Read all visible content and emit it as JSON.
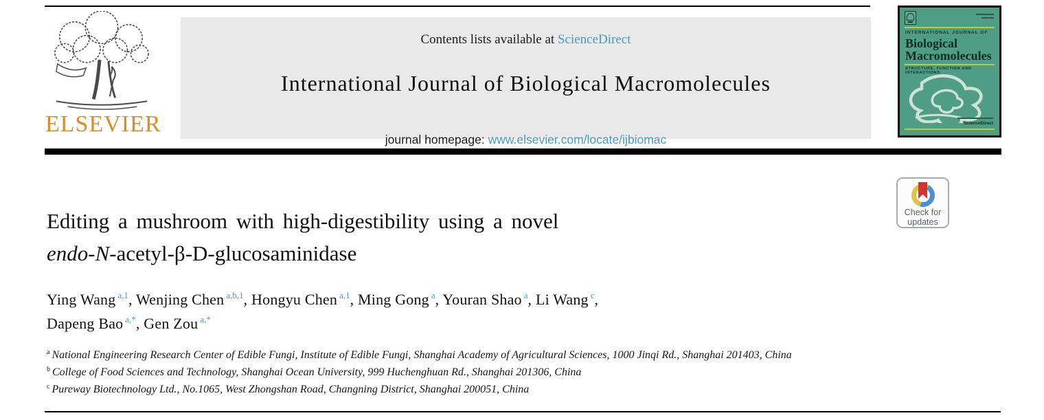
{
  "masthead": {
    "contents_prefix": "Contents lists available at",
    "contents_link": "ScienceDirect",
    "journal_title": "International Journal of Biological Macromolecules",
    "homepage_prefix": "journal homepage:",
    "homepage_link": "www.elsevier.com/locate/ijbiomac"
  },
  "publisher": {
    "wordmark": "ELSEVIER"
  },
  "cover": {
    "kicker": "INTERNATIONAL JOURNAL OF",
    "title_line1": "Biological",
    "title_line2": "Macromolecules",
    "subtitle": "STRUCTURE, FUNCTION AND INTERACTIONS",
    "badge": "ScienceDirect"
  },
  "article": {
    "title_line1": "Editing a mushroom with high-digestibility using a novel",
    "title_line2_italic": "endo-N",
    "title_line2_rest": "-acetyl-β-D-glucosaminidase"
  },
  "authors": {
    "lines": [
      [
        {
          "name": "Ying Wang",
          "sup": "a,1",
          "sep": ", "
        },
        {
          "name": "Wenjing Chen",
          "sup": "a,b,1",
          "sep": ", "
        },
        {
          "name": "Hongyu Chen",
          "sup": "a,1",
          "sep": ", "
        },
        {
          "name": "Ming Gong",
          "sup": "a",
          "sep": ", "
        },
        {
          "name": "Youran Shao",
          "sup": "a",
          "sep": ", "
        },
        {
          "name": "Li Wang",
          "sup": "c",
          "sep": ","
        }
      ],
      [
        {
          "name": "Dapeng Bao",
          "sup": "a,*",
          "sep": ", "
        },
        {
          "name": "Gen Zou",
          "sup": "a,*",
          "sep": ""
        }
      ]
    ]
  },
  "affiliations": [
    {
      "sup": "a",
      "text": "National Engineering Research Center of Edible Fungi, Institute of Edible Fungi, Shanghai Academy of Agricultural Sciences, 1000 Jinqi Rd., Shanghai 201403, China"
    },
    {
      "sup": "b",
      "text": "College of Food Sciences and Technology, Shanghai Ocean University, 999 Huchenghuan Rd., Shanghai 201306, China"
    },
    {
      "sup": "c",
      "text": "Pureway Biotechnology Ltd., No.1065, West Zhongshan Road, Changning District, Shanghai 200051, China"
    }
  ],
  "update_badge": {
    "line1": "Check for",
    "line2": "updates"
  },
  "colors": {
    "link_blue": "#4798c5",
    "elsevier_orange": "#df8a25",
    "masthead_bg": "#e9e9e9",
    "cover_green": "#4f9d85",
    "cover_accent": "#b9cc3c",
    "badge_red": "#d63330",
    "badge_yellow": "#e2c243",
    "badge_blue": "#4a90d2"
  }
}
